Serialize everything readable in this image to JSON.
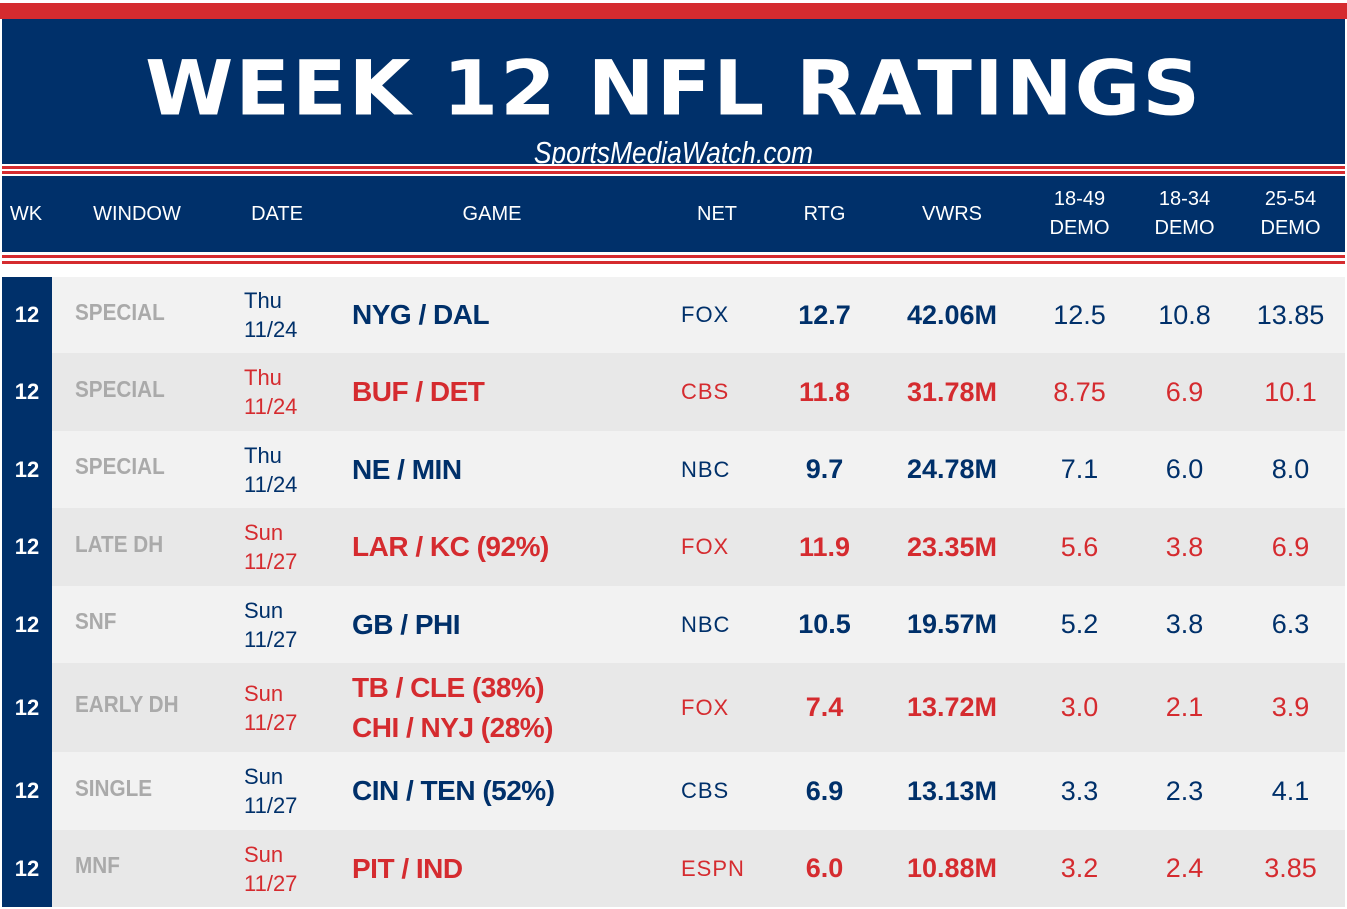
{
  "header": {
    "title": "WEEK 12 NFL RATINGS",
    "subtitle": "SportsMediaWatch.com"
  },
  "colors": {
    "navy": "#00306a",
    "red": "#d52b2f",
    "row_light": "#f2f2f2",
    "row_dark": "#e8e8e8",
    "window_gray": "#aaaaaa"
  },
  "chart_data": {
    "type": "table",
    "columns": [
      "WK",
      "WINDOW",
      "DATE",
      "GAME",
      "NET",
      "RTG",
      "VWRS",
      "18-49 DEMO",
      "18-34 DEMO",
      "25-54 DEMO"
    ],
    "column_headers": [
      {
        "l1": "WK"
      },
      {
        "l1": "WINDOW"
      },
      {
        "l1": "DATE"
      },
      {
        "l1": "GAME"
      },
      {
        "l1": "NET"
      },
      {
        "l1": "RTG"
      },
      {
        "l1": "VWRS"
      },
      {
        "l1": "18-49",
        "l2": "DEMO"
      },
      {
        "l1": "18-34",
        "l2": "DEMO"
      },
      {
        "l1": "25-54",
        "l2": "DEMO"
      }
    ],
    "rows": [
      {
        "wk": "12",
        "window": "SPECIAL",
        "day": "Thu",
        "date": "11/24",
        "game": [
          "NYG / DAL"
        ],
        "net": "FOX",
        "rtg": "12.7",
        "vwrs": "42.06M",
        "d1849": "12.5",
        "d1834": "10.8",
        "d2554": "13.85",
        "color": "navy"
      },
      {
        "wk": "12",
        "window": "SPECIAL",
        "day": "Thu",
        "date": "11/24",
        "game": [
          "BUF / DET"
        ],
        "net": "CBS",
        "rtg": "11.8",
        "vwrs": "31.78M",
        "d1849": "8.75",
        "d1834": "6.9",
        "d2554": "10.1",
        "color": "red"
      },
      {
        "wk": "12",
        "window": "SPECIAL",
        "day": "Thu",
        "date": "11/24",
        "game": [
          "NE / MIN"
        ],
        "net": "NBC",
        "rtg": "9.7",
        "vwrs": "24.78M",
        "d1849": "7.1",
        "d1834": "6.0",
        "d2554": "8.0",
        "color": "navy"
      },
      {
        "wk": "12",
        "window": "LATE DH",
        "day": "Sun",
        "date": "11/27",
        "game": [
          "LAR / KC (92%)"
        ],
        "net": "FOX",
        "rtg": "11.9",
        "vwrs": "23.35M",
        "d1849": "5.6",
        "d1834": "3.8",
        "d2554": "6.9",
        "color": "red"
      },
      {
        "wk": "12",
        "window": "SNF",
        "day": "Sun",
        "date": "11/27",
        "game": [
          "GB / PHI"
        ],
        "net": "NBC",
        "rtg": "10.5",
        "vwrs": "19.57M",
        "d1849": "5.2",
        "d1834": "3.8",
        "d2554": "6.3",
        "color": "navy"
      },
      {
        "wk": "12",
        "window": "EARLY DH",
        "day": "Sun",
        "date": "11/27",
        "game": [
          "TB / CLE (38%)",
          "CHI / NYJ (28%)"
        ],
        "net": "FOX",
        "rtg": "7.4",
        "vwrs": "13.72M",
        "d1849": "3.0",
        "d1834": "2.1",
        "d2554": "3.9",
        "color": "red"
      },
      {
        "wk": "12",
        "window": "SINGLE",
        "day": "Sun",
        "date": "11/27",
        "game": [
          "CIN / TEN (52%)"
        ],
        "net": "CBS",
        "rtg": "6.9",
        "vwrs": "13.13M",
        "d1849": "3.3",
        "d1834": "2.3",
        "d2554": "4.1",
        "color": "navy"
      },
      {
        "wk": "12",
        "window": "MNF",
        "day": "Sun",
        "date": "11/27",
        "game": [
          "PIT / IND"
        ],
        "net": "ESPN",
        "rtg": "6.0",
        "vwrs": "10.88M",
        "d1849": "3.2",
        "d1834": "2.4",
        "d2554": "3.85",
        "color": "red"
      }
    ]
  }
}
